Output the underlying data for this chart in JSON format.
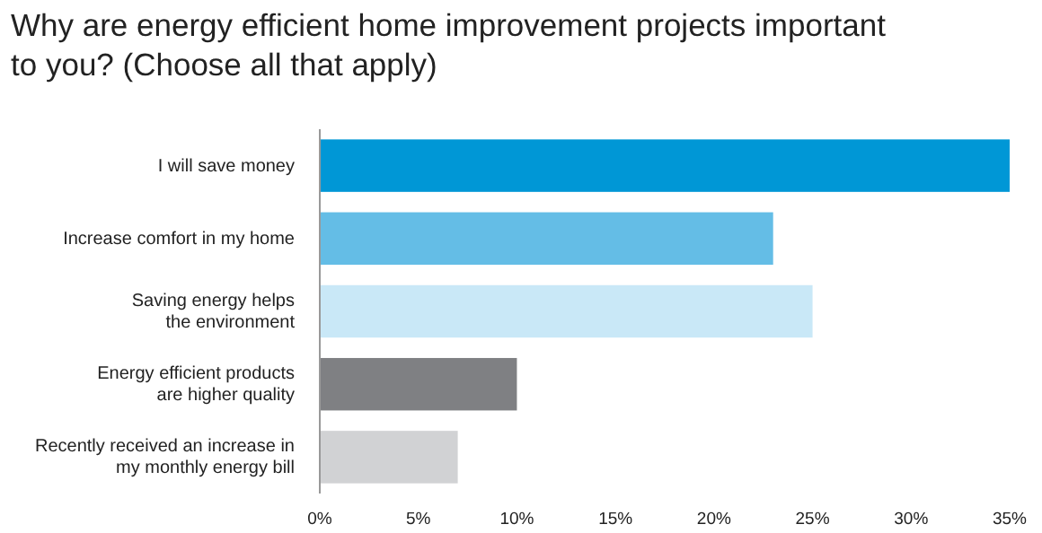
{
  "chart_data": {
    "type": "bar",
    "orientation": "horizontal",
    "title": "Why are energy efficient home improvement projects important to you? (Choose all that apply)",
    "categories": [
      "I will save money",
      "Increase comfort in my home",
      "Saving energy helps\nthe environment",
      "Energy efficient products\nare higher quality",
      "Recently received an increase in\nmy monthly energy bill"
    ],
    "values": [
      35,
      23,
      25,
      10,
      7
    ],
    "colors": [
      "#0097d6",
      "#64bde6",
      "#c9e8f7",
      "#7f8083",
      "#d1d2d4"
    ],
    "xlim": [
      0,
      35
    ],
    "xticks": [
      {
        "value": 0,
        "label": "0%"
      },
      {
        "value": 5,
        "label": "5%"
      },
      {
        "value": 10,
        "label": "10%"
      },
      {
        "value": 15,
        "label": "15%"
      },
      {
        "value": 20,
        "label": "20%"
      },
      {
        "value": 25,
        "label": "25%"
      },
      {
        "value": 30,
        "label": "30%"
      },
      {
        "value": 35,
        "label": "35%"
      }
    ],
    "grid": false
  }
}
